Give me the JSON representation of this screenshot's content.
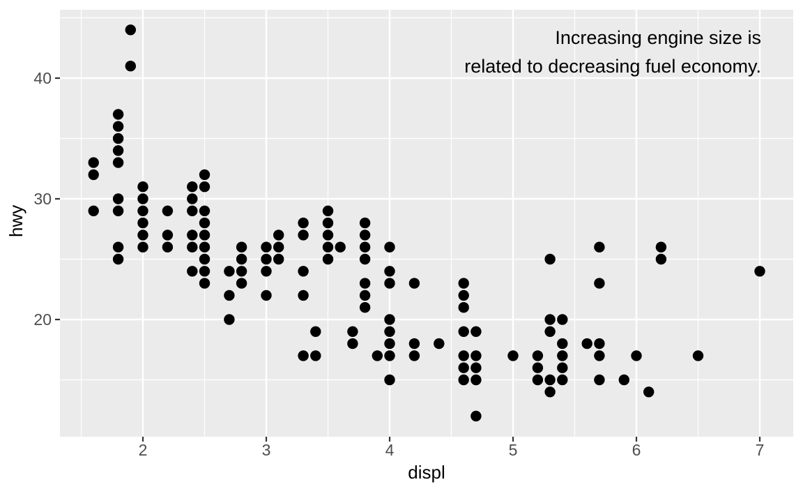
{
  "chart_data": {
    "type": "scatter",
    "title": "",
    "xlabel": "displ",
    "ylabel": "hwy",
    "annotation": {
      "line1": "Increasing engine size is",
      "line2": "related to decreasing fuel economy.",
      "position": "top-right",
      "align": "right"
    },
    "xlim": [
      1.33,
      7.27
    ],
    "ylim": [
      10.3,
      45.7
    ],
    "x_ticks": [
      2,
      3,
      4,
      5,
      6,
      7
    ],
    "y_ticks": [
      20,
      30,
      40
    ],
    "x_minor_ticks": [
      1.5,
      2.5,
      3.5,
      4.5,
      5.5,
      6.5
    ],
    "y_minor_ticks": [
      15,
      25,
      35,
      45
    ],
    "grid": "major-and-minor",
    "legend": "none",
    "theme": "ggplot2-grey",
    "colors": {
      "panel_background": "#EBEBEB",
      "gridline": "#FFFFFF",
      "point": "#000000",
      "tick_label": "#4D4D4D",
      "tick_mark": "#333333",
      "axis_title": "#000000",
      "annotation_text": "#000000",
      "outer_background": "#FFFFFF"
    },
    "point_radius_px": 7.7,
    "points_xy": [
      [
        1.6,
        29
      ],
      [
        1.6,
        32
      ],
      [
        1.6,
        33
      ],
      [
        1.8,
        25
      ],
      [
        1.8,
        26
      ],
      [
        1.8,
        29
      ],
      [
        1.8,
        30
      ],
      [
        1.8,
        33
      ],
      [
        1.8,
        34
      ],
      [
        1.8,
        35
      ],
      [
        1.8,
        36
      ],
      [
        1.8,
        37
      ],
      [
        1.9,
        41
      ],
      [
        1.9,
        44
      ],
      [
        2.0,
        26
      ],
      [
        2.0,
        27
      ],
      [
        2.0,
        28
      ],
      [
        2.0,
        29
      ],
      [
        2.0,
        30
      ],
      [
        2.0,
        31
      ],
      [
        2.2,
        26
      ],
      [
        2.2,
        27
      ],
      [
        2.2,
        29
      ],
      [
        2.4,
        24
      ],
      [
        2.4,
        26
      ],
      [
        2.4,
        27
      ],
      [
        2.4,
        29
      ],
      [
        2.4,
        30
      ],
      [
        2.4,
        31
      ],
      [
        2.5,
        23
      ],
      [
        2.5,
        24
      ],
      [
        2.5,
        25
      ],
      [
        2.5,
        26
      ],
      [
        2.5,
        27
      ],
      [
        2.5,
        28
      ],
      [
        2.5,
        29
      ],
      [
        2.5,
        31
      ],
      [
        2.5,
        32
      ],
      [
        2.7,
        20
      ],
      [
        2.7,
        22
      ],
      [
        2.7,
        24
      ],
      [
        2.8,
        23
      ],
      [
        2.8,
        24
      ],
      [
        2.8,
        25
      ],
      [
        2.8,
        26
      ],
      [
        3.0,
        22
      ],
      [
        3.0,
        24
      ],
      [
        3.0,
        25
      ],
      [
        3.0,
        26
      ],
      [
        3.1,
        25
      ],
      [
        3.1,
        26
      ],
      [
        3.1,
        27
      ],
      [
        3.3,
        17
      ],
      [
        3.3,
        22
      ],
      [
        3.3,
        24
      ],
      [
        3.3,
        27
      ],
      [
        3.3,
        28
      ],
      [
        3.4,
        17
      ],
      [
        3.4,
        19
      ],
      [
        3.5,
        25
      ],
      [
        3.5,
        26
      ],
      [
        3.5,
        27
      ],
      [
        3.5,
        28
      ],
      [
        3.5,
        29
      ],
      [
        3.6,
        26
      ],
      [
        3.7,
        18
      ],
      [
        3.7,
        19
      ],
      [
        3.8,
        21
      ],
      [
        3.8,
        22
      ],
      [
        3.8,
        23
      ],
      [
        3.8,
        25
      ],
      [
        3.8,
        26
      ],
      [
        3.8,
        27
      ],
      [
        3.8,
        28
      ],
      [
        3.9,
        17
      ],
      [
        4.0,
        15
      ],
      [
        4.0,
        17
      ],
      [
        4.0,
        18
      ],
      [
        4.0,
        19
      ],
      [
        4.0,
        20
      ],
      [
        4.0,
        23
      ],
      [
        4.0,
        24
      ],
      [
        4.0,
        26
      ],
      [
        4.2,
        17
      ],
      [
        4.2,
        18
      ],
      [
        4.2,
        23
      ],
      [
        4.4,
        18
      ],
      [
        4.6,
        15
      ],
      [
        4.6,
        16
      ],
      [
        4.6,
        17
      ],
      [
        4.6,
        19
      ],
      [
        4.6,
        21
      ],
      [
        4.6,
        22
      ],
      [
        4.6,
        23
      ],
      [
        4.7,
        12
      ],
      [
        4.7,
        15
      ],
      [
        4.7,
        16
      ],
      [
        4.7,
        17
      ],
      [
        4.7,
        19
      ],
      [
        5.0,
        17
      ],
      [
        5.2,
        15
      ],
      [
        5.2,
        16
      ],
      [
        5.2,
        17
      ],
      [
        5.3,
        14
      ],
      [
        5.3,
        15
      ],
      [
        5.3,
        19
      ],
      [
        5.3,
        20
      ],
      [
        5.3,
        25
      ],
      [
        5.4,
        15
      ],
      [
        5.4,
        16
      ],
      [
        5.4,
        17
      ],
      [
        5.4,
        18
      ],
      [
        5.4,
        20
      ],
      [
        5.6,
        18
      ],
      [
        5.7,
        15
      ],
      [
        5.7,
        17
      ],
      [
        5.7,
        18
      ],
      [
        5.7,
        23
      ],
      [
        5.7,
        26
      ],
      [
        5.9,
        15
      ],
      [
        6.0,
        17
      ],
      [
        6.1,
        14
      ],
      [
        6.2,
        25
      ],
      [
        6.2,
        26
      ],
      [
        6.5,
        17
      ],
      [
        7.0,
        24
      ]
    ]
  }
}
